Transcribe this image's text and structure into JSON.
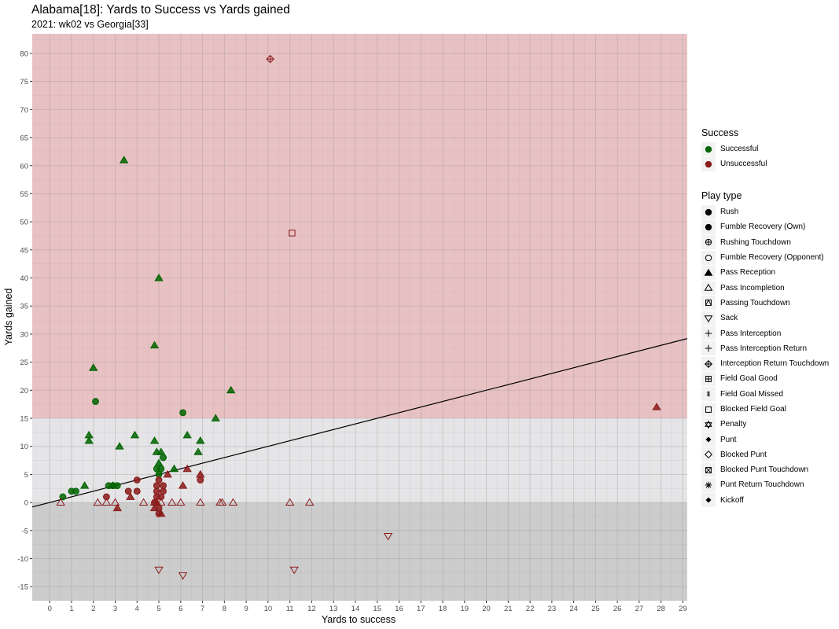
{
  "chart_data": {
    "type": "scatter",
    "title": "Alabama[18]: Yards to Success vs Yards gained",
    "subtitle": "2021: wk02 vs Georgia[33]",
    "xlabel": "Yards to success",
    "ylabel": "Yards gained",
    "xlim": [
      -0.8,
      29.2
    ],
    "ylim": [
      -17.5,
      83.5
    ],
    "x_ticks": [
      0,
      1,
      2,
      3,
      4,
      5,
      6,
      7,
      8,
      9,
      10,
      11,
      12,
      13,
      14,
      15,
      16,
      17,
      18,
      19,
      20,
      21,
      22,
      23,
      24,
      25,
      26,
      27,
      28,
      29
    ],
    "y_ticks": [
      -15,
      -10,
      -5,
      0,
      5,
      10,
      15,
      20,
      25,
      30,
      35,
      40,
      45,
      50,
      55,
      60,
      65,
      70,
      75,
      80
    ],
    "grid": true,
    "bands": [
      {
        "from": -17.5,
        "to": 0,
        "color": "#cccccc"
      },
      {
        "from": 0,
        "to": 15,
        "color": "#e5e5e7"
      },
      {
        "from": 15,
        "to": 83.5,
        "color": "#e8c1c3"
      }
    ],
    "reference_line": {
      "points": [
        [
          -0.8,
          -0.8
        ],
        [
          29.2,
          29.2
        ]
      ],
      "color": "#000000"
    },
    "colors": {
      "Successful": "#006400",
      "Unsuccessful": "#8b1a1a"
    },
    "legend_placement": "right",
    "legend_success": {
      "title": "Success",
      "items": [
        {
          "label": "Successful",
          "color": "#006400"
        },
        {
          "label": "Unsuccessful",
          "color": "#8b1a1a"
        }
      ]
    },
    "legend_play_type": {
      "title": "Play type",
      "items": [
        {
          "label": "Rush",
          "shape": "circle-filled"
        },
        {
          "label": "Fumble Recovery (Own)",
          "shape": "circle-filled"
        },
        {
          "label": "Rushing Touchdown",
          "shape": "circle-plus"
        },
        {
          "label": "Fumble Recovery (Opponent)",
          "shape": "circle-open"
        },
        {
          "label": "Pass Reception",
          "shape": "triangle-filled"
        },
        {
          "label": "Pass Incompletion",
          "shape": "triangle-open"
        },
        {
          "label": "Passing Touchdown",
          "shape": "square-triangle"
        },
        {
          "label": "Sack",
          "shape": "triangle-down-open"
        },
        {
          "label": "Pass Interception",
          "shape": "plus"
        },
        {
          "label": "Pass Interception Return",
          "shape": "plus"
        },
        {
          "label": "Interception Return Touchdown",
          "shape": "diamond-plus"
        },
        {
          "label": "Field Goal Good",
          "shape": "square-plus"
        },
        {
          "label": "Field Goal Missed",
          "shape": "bar"
        },
        {
          "label": "Blocked Field Goal",
          "shape": "square-open"
        },
        {
          "label": "Penalty",
          "shape": "star-of-david"
        },
        {
          "label": "Punt",
          "shape": "diamond-filled-small"
        },
        {
          "label": "Blocked Punt",
          "shape": "diamond-open"
        },
        {
          "label": "Blocked Punt Touchdown",
          "shape": "square-x"
        },
        {
          "label": "Punt Return Touchdown",
          "shape": "asterisk"
        },
        {
          "label": "Kickoff",
          "shape": "diamond-filled-small"
        }
      ]
    },
    "points": [
      {
        "x": 0.6,
        "y": 1,
        "shape": "circle-filled",
        "success": "Successful"
      },
      {
        "x": 1.0,
        "y": 2,
        "shape": "circle-filled",
        "success": "Successful"
      },
      {
        "x": 1.2,
        "y": 2,
        "shape": "circle-filled",
        "success": "Successful"
      },
      {
        "x": 2.1,
        "y": 18,
        "shape": "circle-filled",
        "success": "Successful"
      },
      {
        "x": 2.7,
        "y": 3,
        "shape": "circle-filled",
        "success": "Successful"
      },
      {
        "x": 2.9,
        "y": 3,
        "shape": "circle-filled",
        "success": "Successful"
      },
      {
        "x": 3.1,
        "y": 3,
        "shape": "circle-filled",
        "success": "Successful"
      },
      {
        "x": 4.9,
        "y": 6,
        "shape": "circle-filled",
        "success": "Successful"
      },
      {
        "x": 5.0,
        "y": 5,
        "shape": "circle-filled",
        "success": "Successful"
      },
      {
        "x": 5.1,
        "y": 6,
        "shape": "circle-filled",
        "success": "Successful"
      },
      {
        "x": 5.2,
        "y": 8,
        "shape": "circle-filled",
        "success": "Successful"
      },
      {
        "x": 6.1,
        "y": 16,
        "shape": "circle-filled",
        "success": "Successful"
      },
      {
        "x": 1.6,
        "y": 3,
        "shape": "triangle-filled",
        "success": "Successful"
      },
      {
        "x": 1.8,
        "y": 11,
        "shape": "triangle-filled",
        "success": "Successful"
      },
      {
        "x": 1.8,
        "y": 12,
        "shape": "triangle-filled",
        "success": "Successful"
      },
      {
        "x": 2.0,
        "y": 24,
        "shape": "triangle-filled",
        "success": "Successful"
      },
      {
        "x": 2.9,
        "y": 3,
        "shape": "triangle-filled",
        "success": "Successful"
      },
      {
        "x": 3.2,
        "y": 10,
        "shape": "triangle-filled",
        "success": "Successful"
      },
      {
        "x": 3.4,
        "y": 61,
        "shape": "triangle-filled",
        "success": "Successful"
      },
      {
        "x": 3.9,
        "y": 12,
        "shape": "triangle-filled",
        "success": "Successful"
      },
      {
        "x": 4.8,
        "y": 11,
        "shape": "triangle-filled",
        "success": "Successful"
      },
      {
        "x": 4.8,
        "y": 28,
        "shape": "triangle-filled",
        "success": "Successful"
      },
      {
        "x": 4.9,
        "y": 9,
        "shape": "triangle-filled",
        "success": "Successful"
      },
      {
        "x": 5.0,
        "y": 40,
        "shape": "triangle-filled",
        "success": "Successful"
      },
      {
        "x": 5.0,
        "y": 7,
        "shape": "triangle-filled",
        "success": "Successful"
      },
      {
        "x": 5.1,
        "y": 9,
        "shape": "triangle-filled",
        "success": "Successful"
      },
      {
        "x": 5.7,
        "y": 6,
        "shape": "triangle-filled",
        "success": "Successful"
      },
      {
        "x": 6.3,
        "y": 12,
        "shape": "triangle-filled",
        "success": "Successful"
      },
      {
        "x": 6.8,
        "y": 9,
        "shape": "triangle-filled",
        "success": "Successful"
      },
      {
        "x": 6.9,
        "y": 11,
        "shape": "triangle-filled",
        "success": "Successful"
      },
      {
        "x": 7.6,
        "y": 15,
        "shape": "triangle-filled",
        "success": "Successful"
      },
      {
        "x": 8.3,
        "y": 20,
        "shape": "triangle-filled",
        "success": "Successful"
      },
      {
        "x": 2.6,
        "y": 1,
        "shape": "circle-filled",
        "success": "Unsuccessful"
      },
      {
        "x": 3.6,
        "y": 2,
        "shape": "circle-filled",
        "success": "Unsuccessful"
      },
      {
        "x": 4.0,
        "y": 4,
        "shape": "circle-filled",
        "success": "Unsuccessful"
      },
      {
        "x": 4.0,
        "y": 2,
        "shape": "circle-filled",
        "success": "Unsuccessful"
      },
      {
        "x": 4.8,
        "y": 0,
        "shape": "circle-filled",
        "success": "Unsuccessful"
      },
      {
        "x": 4.9,
        "y": 1,
        "shape": "circle-filled",
        "success": "Unsuccessful"
      },
      {
        "x": 4.9,
        "y": 2,
        "shape": "circle-filled",
        "success": "Unsuccessful"
      },
      {
        "x": 4.9,
        "y": 3,
        "shape": "circle-filled",
        "success": "Unsuccessful"
      },
      {
        "x": 5.0,
        "y": 4,
        "shape": "circle-filled",
        "success": "Unsuccessful"
      },
      {
        "x": 5.0,
        "y": -1,
        "shape": "circle-filled",
        "success": "Unsuccessful"
      },
      {
        "x": 5.0,
        "y": -2,
        "shape": "circle-filled",
        "success": "Unsuccessful"
      },
      {
        "x": 5.1,
        "y": 1,
        "shape": "circle-filled",
        "success": "Unsuccessful"
      },
      {
        "x": 5.2,
        "y": 2,
        "shape": "circle-filled",
        "success": "Unsuccessful"
      },
      {
        "x": 5.2,
        "y": 3,
        "shape": "circle-filled",
        "success": "Unsuccessful"
      },
      {
        "x": 6.9,
        "y": 4,
        "shape": "circle-filled",
        "success": "Unsuccessful"
      },
      {
        "x": 3.1,
        "y": -1,
        "shape": "triangle-filled",
        "success": "Unsuccessful"
      },
      {
        "x": 3.7,
        "y": 1,
        "shape": "triangle-filled",
        "success": "Unsuccessful"
      },
      {
        "x": 4.8,
        "y": -1,
        "shape": "triangle-filled",
        "success": "Unsuccessful"
      },
      {
        "x": 4.9,
        "y": 0,
        "shape": "triangle-filled",
        "success": "Unsuccessful"
      },
      {
        "x": 5.1,
        "y": -2,
        "shape": "triangle-filled",
        "success": "Unsuccessful"
      },
      {
        "x": 5.4,
        "y": 5,
        "shape": "triangle-filled",
        "success": "Unsuccessful"
      },
      {
        "x": 6.1,
        "y": 3,
        "shape": "triangle-filled",
        "success": "Unsuccessful"
      },
      {
        "x": 6.3,
        "y": 6,
        "shape": "triangle-filled",
        "success": "Unsuccessful"
      },
      {
        "x": 6.9,
        "y": 5,
        "shape": "triangle-filled",
        "success": "Unsuccessful"
      },
      {
        "x": 27.8,
        "y": 17,
        "shape": "triangle-filled",
        "success": "Unsuccessful"
      },
      {
        "x": 0.5,
        "y": 0,
        "shape": "triangle-open",
        "success": "Unsuccessful"
      },
      {
        "x": 2.2,
        "y": 0,
        "shape": "triangle-open",
        "success": "Unsuccessful"
      },
      {
        "x": 2.6,
        "y": 0,
        "shape": "triangle-open",
        "success": "Unsuccessful"
      },
      {
        "x": 3.0,
        "y": 0,
        "shape": "triangle-open",
        "success": "Unsuccessful"
      },
      {
        "x": 4.3,
        "y": 0,
        "shape": "triangle-open",
        "success": "Unsuccessful"
      },
      {
        "x": 4.8,
        "y": 0,
        "shape": "triangle-open",
        "success": "Unsuccessful"
      },
      {
        "x": 5.1,
        "y": 0,
        "shape": "triangle-open",
        "success": "Unsuccessful"
      },
      {
        "x": 5.6,
        "y": 0,
        "shape": "triangle-open",
        "success": "Unsuccessful"
      },
      {
        "x": 6.0,
        "y": 0,
        "shape": "triangle-open",
        "success": "Unsuccessful"
      },
      {
        "x": 6.9,
        "y": 0,
        "shape": "triangle-open",
        "success": "Unsuccessful"
      },
      {
        "x": 7.8,
        "y": 0,
        "shape": "triangle-open",
        "success": "Unsuccessful"
      },
      {
        "x": 7.9,
        "y": 0,
        "shape": "triangle-open",
        "success": "Unsuccessful"
      },
      {
        "x": 8.4,
        "y": 0,
        "shape": "triangle-open",
        "success": "Unsuccessful"
      },
      {
        "x": 11.0,
        "y": 0,
        "shape": "triangle-open",
        "success": "Unsuccessful"
      },
      {
        "x": 11.9,
        "y": 0,
        "shape": "triangle-open",
        "success": "Unsuccessful"
      },
      {
        "x": 5.0,
        "y": -12,
        "shape": "triangle-down-open",
        "success": "Unsuccessful"
      },
      {
        "x": 6.1,
        "y": -13,
        "shape": "triangle-down-open",
        "success": "Unsuccessful"
      },
      {
        "x": 11.2,
        "y": -12,
        "shape": "triangle-down-open",
        "success": "Unsuccessful"
      },
      {
        "x": 15.5,
        "y": -6,
        "shape": "triangle-down-open",
        "success": "Unsuccessful"
      },
      {
        "x": 10.1,
        "y": 79,
        "shape": "diamond-plus",
        "success": "Unsuccessful"
      },
      {
        "x": 11.1,
        "y": 48,
        "shape": "square-open",
        "success": "Unsuccessful"
      }
    ]
  }
}
